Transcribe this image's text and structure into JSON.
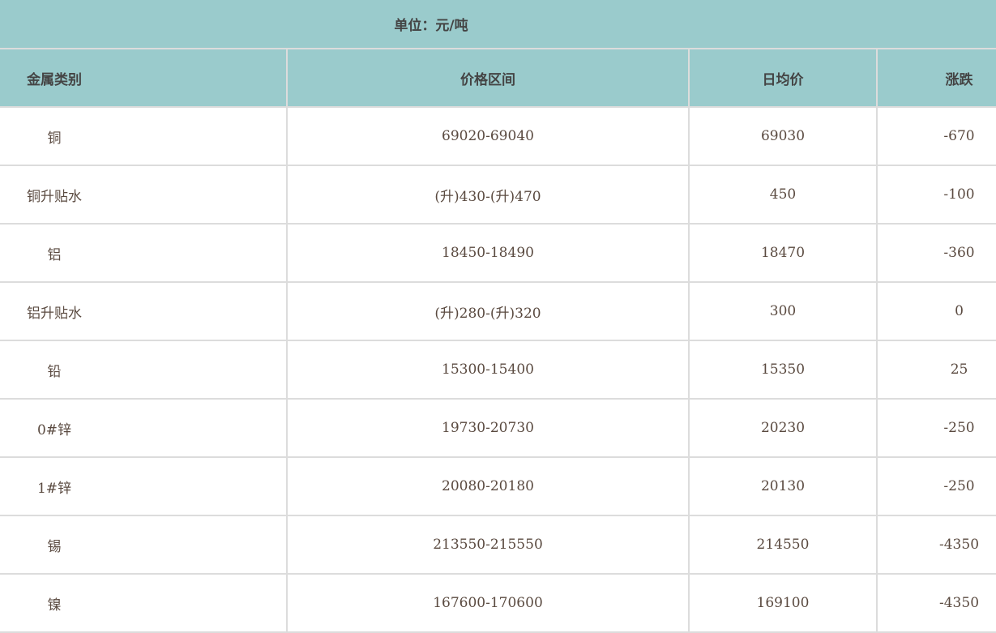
{
  "unit_label": "单位：元/吨",
  "columns": [
    "金属类别",
    "价格区间",
    "日均价",
    "涨跌"
  ],
  "rows": [
    {
      "metal": "铜",
      "range": "69020-69040",
      "avg": "69030",
      "change": "-670"
    },
    {
      "metal": "铜升贴水",
      "range": "(升)430-(升)470",
      "avg": "450",
      "change": "-100"
    },
    {
      "metal": "铝",
      "range": "18450-18490",
      "avg": "18470",
      "change": "-360"
    },
    {
      "metal": "铝升贴水",
      "range": "(升)280-(升)320",
      "avg": "300",
      "change": "0"
    },
    {
      "metal": "铅",
      "range": "15300-15400",
      "avg": "15350",
      "change": "25"
    },
    {
      "metal": "0#锌",
      "range": "19730-20730",
      "avg": "20230",
      "change": "-250"
    },
    {
      "metal": "1#锌",
      "range": "20080-20180",
      "avg": "20130",
      "change": "-250"
    },
    {
      "metal": "锡",
      "range": "213550-215550",
      "avg": "214550",
      "change": "-4350"
    },
    {
      "metal": "镍",
      "range": "167600-170600",
      "avg": "169100",
      "change": "-4350"
    }
  ],
  "colors": {
    "header_bg": "#9acbcc",
    "border": "#dcdcdc"
  }
}
